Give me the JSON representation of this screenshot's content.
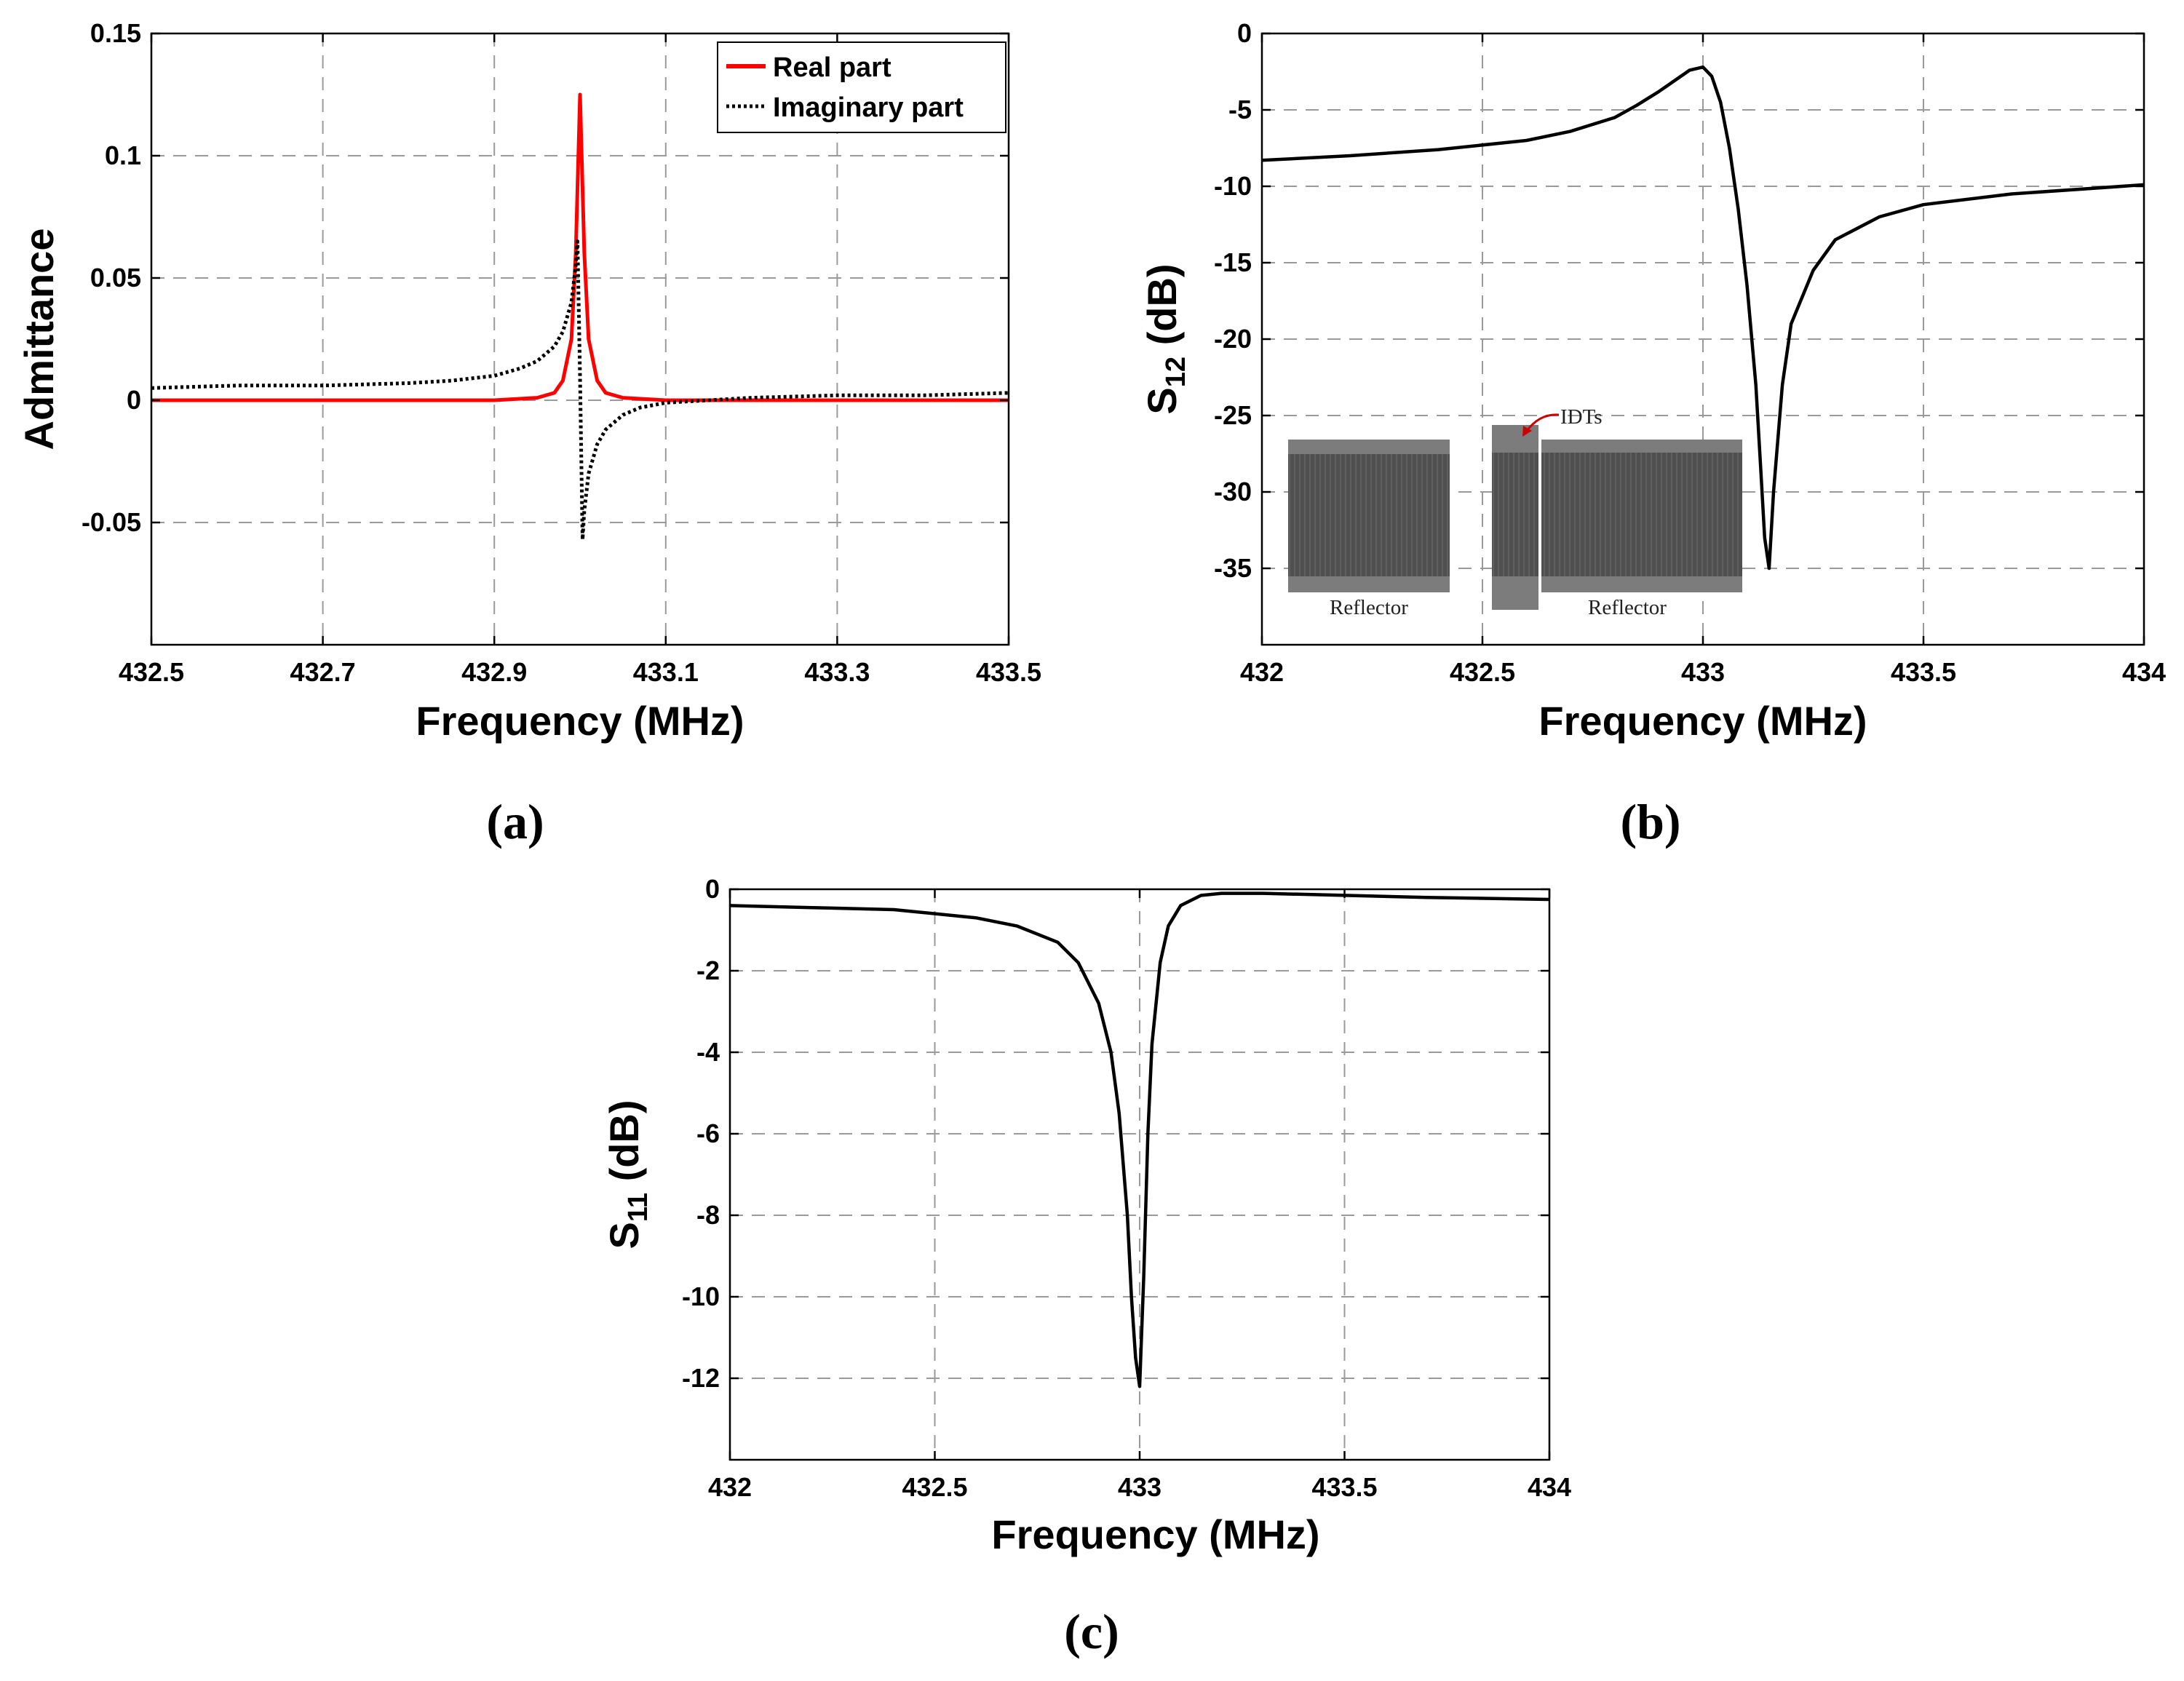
{
  "chart_data": [
    {
      "id": "a",
      "type": "line",
      "panel_label": "(a)",
      "xlabel": "Frequency (MHz)",
      "ylabel": "Admittance",
      "xlim": [
        432.5,
        433.5
      ],
      "ylim": [
        -0.1,
        0.15
      ],
      "xticks": [
        432.5,
        432.7,
        432.9,
        433.1,
        433.3,
        433.5
      ],
      "xtick_labels": [
        "432.5",
        "432.7",
        "432.9",
        "433.1",
        "433.3",
        "433.5"
      ],
      "yticks": [
        0.15,
        0.1,
        0.05,
        0,
        -0.05
      ],
      "ytick_labels": [
        "0.15",
        "0.1",
        "0.05",
        "0",
        "-0.05"
      ],
      "grid": true,
      "legend_position": "top-right",
      "series": [
        {
          "name": "Real part",
          "color": "#ff0000",
          "style": "solid",
          "x": [
            432.5,
            432.7,
            432.8,
            432.9,
            432.95,
            432.97,
            432.98,
            432.99,
            432.995,
            433.0,
            433.005,
            433.01,
            433.02,
            433.03,
            433.05,
            433.1,
            433.2,
            433.3,
            433.5
          ],
          "y": [
            0,
            0,
            0,
            0,
            0.001,
            0.003,
            0.008,
            0.025,
            0.06,
            0.125,
            0.06,
            0.025,
            0.008,
            0.003,
            0.001,
            0,
            0,
            0,
            0
          ]
        },
        {
          "name": "Imaginary part",
          "color": "#000000",
          "style": "dotted",
          "x": [
            432.5,
            432.6,
            432.7,
            432.8,
            432.85,
            432.9,
            432.93,
            432.95,
            432.97,
            432.98,
            432.99,
            432.995,
            432.997,
            433.0,
            433.003,
            433.005,
            433.01,
            433.02,
            433.03,
            433.05,
            433.07,
            433.1,
            433.15,
            433.2,
            433.3,
            433.4,
            433.5
          ],
          "y": [
            0.005,
            0.006,
            0.006,
            0.007,
            0.008,
            0.01,
            0.013,
            0.016,
            0.022,
            0.028,
            0.04,
            0.055,
            0.065,
            0.01,
            -0.057,
            -0.045,
            -0.03,
            -0.018,
            -0.012,
            -0.006,
            -0.003,
            -0.001,
            0.0,
            0.001,
            0.002,
            0.002,
            0.003
          ]
        }
      ]
    },
    {
      "id": "b",
      "type": "line",
      "panel_label": "(b)",
      "xlabel": "Frequency (MHz)",
      "ylabel_main": "S",
      "ylabel_sub": "12",
      "ylabel_unit": " (dB)",
      "xlim": [
        432,
        434
      ],
      "ylim": [
        -40,
        0
      ],
      "xticks": [
        432,
        432.5,
        433,
        433.5,
        434
      ],
      "xtick_labels": [
        "432",
        "432.5",
        "433",
        "433.5",
        "434"
      ],
      "yticks": [
        0,
        -5,
        -10,
        -15,
        -20,
        -25,
        -30,
        -35
      ],
      "ytick_labels": [
        "0",
        "-5",
        "-10",
        "-15",
        "-20",
        "-25",
        "-30",
        "-35"
      ],
      "grid": true,
      "series": [
        {
          "name": "S12",
          "color": "#000000",
          "style": "solid",
          "x": [
            432.0,
            432.2,
            432.4,
            432.6,
            432.7,
            432.8,
            432.85,
            432.9,
            432.94,
            432.97,
            433.0,
            433.02,
            433.04,
            433.06,
            433.08,
            433.1,
            433.12,
            433.13,
            433.14,
            433.15,
            433.16,
            433.18,
            433.2,
            433.25,
            433.3,
            433.4,
            433.5,
            433.7,
            434.0
          ],
          "y": [
            -8.3,
            -8.0,
            -7.6,
            -7.0,
            -6.4,
            -5.5,
            -4.7,
            -3.8,
            -3.0,
            -2.4,
            -2.2,
            -2.8,
            -4.5,
            -7.5,
            -11.5,
            -16.5,
            -23.0,
            -28.0,
            -33.0,
            -35.0,
            -30.0,
            -23.0,
            -19.0,
            -15.5,
            -13.5,
            -12.0,
            -11.2,
            -10.5,
            -9.9
          ]
        }
      ],
      "inset": {
        "idt_label": "IDTs",
        "reflector_left_label": "Reflector",
        "reflector_right_label": "Reflector",
        "arrow_color": "#cc0000"
      }
    },
    {
      "id": "c",
      "type": "line",
      "panel_label": "(c)",
      "xlabel": "Frequency (MHz)",
      "ylabel_main": "S",
      "ylabel_sub": "11",
      "ylabel_unit": " (dB)",
      "xlim": [
        432,
        434
      ],
      "ylim": [
        -14,
        0
      ],
      "xticks": [
        432,
        432.5,
        433,
        433.5,
        434
      ],
      "xtick_labels": [
        "432",
        "432.5",
        "433",
        "433.5",
        "434"
      ],
      "yticks": [
        0,
        -2,
        -4,
        -6,
        -8,
        -10,
        -12
      ],
      "ytick_labels": [
        "0",
        "-2",
        "-4",
        "-6",
        "-8",
        "-10",
        "-12"
      ],
      "grid": true,
      "series": [
        {
          "name": "S11",
          "color": "#000000",
          "style": "solid",
          "x": [
            432.0,
            432.2,
            432.4,
            432.6,
            432.7,
            432.8,
            432.85,
            432.9,
            432.93,
            432.95,
            432.97,
            432.98,
            432.99,
            433.0,
            433.01,
            433.02,
            433.03,
            433.05,
            433.07,
            433.1,
            433.15,
            433.2,
            433.3,
            433.5,
            433.7,
            434.0
          ],
          "y": [
            -0.4,
            -0.45,
            -0.5,
            -0.7,
            -0.9,
            -1.3,
            -1.8,
            -2.8,
            -4.0,
            -5.5,
            -8.0,
            -10.0,
            -11.5,
            -12.2,
            -9.5,
            -6.0,
            -3.8,
            -1.8,
            -0.9,
            -0.4,
            -0.15,
            -0.1,
            -0.1,
            -0.15,
            -0.2,
            -0.25
          ]
        }
      ]
    }
  ]
}
